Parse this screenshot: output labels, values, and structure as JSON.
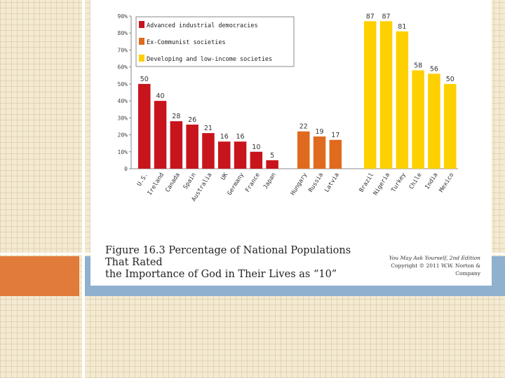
{
  "figure": {
    "caption_line1": "Figure 16.3 Percentage of National Populations That Rated",
    "caption_line2": "the Importance of God in Their Lives as “10”",
    "credit_line1": "You May Ask Yourself, 2nd Edition",
    "credit_line2": "Copyright © 2011 W.W. Norton & Company"
  },
  "chart_data": {
    "type": "bar",
    "title": "",
    "xlabel": "",
    "ylabel": "",
    "ylim": [
      0,
      90
    ],
    "yticks": [
      "0",
      "10%",
      "20%",
      "30%",
      "40%",
      "50%",
      "60%",
      "70%",
      "80%",
      "90%"
    ],
    "grid": false,
    "legend_position": "top-left",
    "groups": [
      {
        "name": "Advanced industrial democracies",
        "color": "#c8141c",
        "categories": [
          "U.S.",
          "Ireland",
          "Canada",
          "Spain",
          "Australia",
          "UK",
          "Germany",
          "France",
          "Japan"
        ],
        "values": [
          50,
          40,
          28,
          26,
          21,
          16,
          16,
          10,
          5
        ]
      },
      {
        "name": "Ex-Communist societies",
        "color": "#e06a1e",
        "categories": [
          "Hungary",
          "Russia",
          "Latvia"
        ],
        "values": [
          22,
          19,
          17
        ]
      },
      {
        "name": "Developing and low-income societies",
        "color": "#ffd000",
        "categories": [
          "Brazil",
          "Nigeria",
          "Turkey",
          "Chile",
          "India",
          "Mexico"
        ],
        "values": [
          87,
          87,
          81,
          58,
          56,
          50
        ]
      }
    ]
  }
}
